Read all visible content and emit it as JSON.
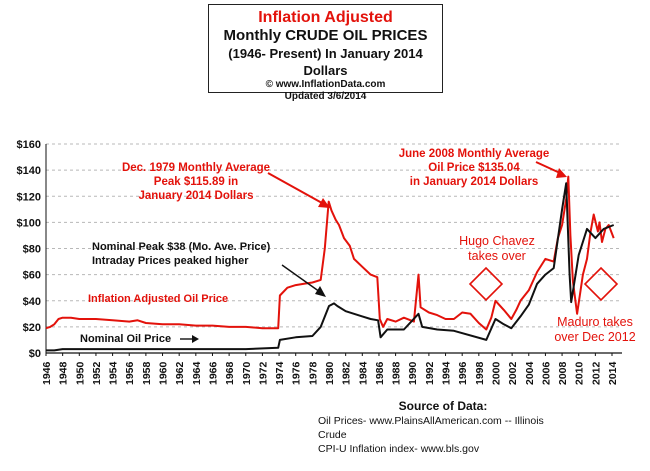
{
  "chart_data": {
    "type": "line",
    "title": "Inflation Adjusted",
    "subtitle": "Monthly CRUDE OIL PRICES",
    "subtitle2": "(1946- Present) In January 2014 Dollars",
    "website": "© www.InflationData.com",
    "updated": "Updated 3/6/2014",
    "xlim": [
      1946,
      2015.2
    ],
    "ylim": [
      0,
      160
    ],
    "grid": true,
    "y_ticks": [
      0,
      20,
      40,
      60,
      80,
      100,
      120,
      140,
      160
    ],
    "y_tick_labels": [
      "$0",
      "$20",
      "$40",
      "$60",
      "$80",
      "$100",
      "$120",
      "$140",
      "$160"
    ],
    "x_ticks": [
      1946,
      1948,
      1950,
      1952,
      1954,
      1956,
      1958,
      1960,
      1962,
      1964,
      1966,
      1968,
      1970,
      1972,
      1974,
      1976,
      1978,
      1980,
      1982,
      1984,
      1986,
      1988,
      1990,
      1992,
      1994,
      1996,
      1998,
      2000,
      2002,
      2004,
      2006,
      2008,
      2010,
      2012,
      2014
    ],
    "colors": {
      "inflation_adjusted": "#e3120b",
      "nominal": "#111111",
      "accent": "#e3120b"
    },
    "series": [
      {
        "name": "Inflation Adjusted Oil Price",
        "x": [
          1946,
          1946.5,
          1947,
          1947.5,
          1948,
          1949,
          1950,
          1952,
          1954,
          1956,
          1957,
          1958,
          1960,
          1962,
          1964,
          1966,
          1968,
          1970,
          1972,
          1973.5,
          1973.9,
          1974.1,
          1975,
          1976,
          1977,
          1978,
          1979,
          1979.5,
          1979.96,
          1980.3,
          1980.8,
          1981.2,
          1981.8,
          1982.5,
          1983,
          1984,
          1985,
          1985.8,
          1986.1,
          1986.5,
          1987,
          1988,
          1989,
          1990.2,
          1990.75,
          1991,
          1992,
          1993,
          1994,
          1995,
          1996,
          1997,
          1998,
          1998.9,
          1999.5,
          2000,
          2001,
          2001.9,
          2002.5,
          2003,
          2004,
          2005,
          2006,
          2007,
          2007.5,
          2008,
          2008.5,
          2008.75,
          2009.0,
          2009.3,
          2009.8,
          2010.5,
          2011,
          2011.4,
          2011.8,
          2012.3,
          2012.5,
          2012.8,
          2013.2,
          2013.6,
          2014.2
        ],
        "values": [
          19,
          20,
          22,
          26,
          27,
          27,
          26,
          26,
          25,
          24,
          25,
          23,
          22,
          22,
          21,
          21,
          20,
          20,
          19,
          19,
          19,
          44,
          50,
          52,
          53,
          54,
          56,
          80,
          115.89,
          109,
          102,
          98,
          88,
          82,
          72,
          66,
          60,
          58,
          26,
          20,
          26,
          24,
          27,
          24,
          60,
          35,
          31,
          29,
          26,
          26,
          31,
          30,
          23,
          18,
          27,
          40,
          33,
          26,
          33,
          40,
          48,
          62,
          72,
          70,
          88,
          98,
          118,
          135.04,
          90,
          55,
          30,
          60,
          72,
          92,
          106,
          93,
          100,
          85,
          95,
          98,
          88
        ]
      },
      {
        "name": "Nominal Oil Price",
        "x": [
          1946,
          1947,
          1948,
          1950,
          1955,
          1960,
          1965,
          1970,
          1973.9,
          1974.1,
          1976,
          1978,
          1979,
          1980,
          1980.6,
          1981,
          1982,
          1984,
          1985,
          1985.9,
          1986.2,
          1987,
          1989,
          1990.75,
          1991.2,
          1993,
          1995,
          1998.9,
          2000,
          2001,
          2001.9,
          2003,
          2004,
          2005,
          2006,
          2007,
          2008,
          2008.5,
          2008.9,
          2009.1,
          2010,
          2011,
          2012,
          2013,
          2014.2
        ],
        "values": [
          2,
          2,
          3,
          3,
          3,
          3,
          3,
          3,
          4,
          10,
          12,
          13,
          20,
          36,
          38,
          36,
          32,
          28,
          26,
          25,
          12,
          18,
          18,
          30,
          20,
          18,
          17,
          10,
          26,
          22,
          19,
          28,
          37,
          53,
          60,
          65,
          110,
          130,
          60,
          39,
          75,
          95,
          88,
          95,
          98
        ]
      }
    ],
    "annotations": [
      {
        "id": "peak1979",
        "lines": [
          "Dec. 1979 Monthly Average",
          "Peak $115.89 in",
          "January 2014 Dollars"
        ],
        "color": "#e3120b"
      },
      {
        "id": "peak2008",
        "lines": [
          "June 2008 Monthly Average",
          "Oil  Price $135.04",
          "in January 2014 Dollars"
        ],
        "color": "#e3120b"
      },
      {
        "id": "nominal-peak",
        "lines": [
          "Nominal Peak $38 (Mo. Ave. Price)",
          "Intraday Prices peaked higher"
        ],
        "color": "#111111"
      },
      {
        "id": "chavez",
        "lines": [
          "Hugo Chavez",
          "takes over"
        ],
        "color": "#e3120b"
      },
      {
        "id": "maduro",
        "lines": [
          "Maduro takes",
          "over Dec 2012"
        ],
        "color": "#e3120b"
      }
    ],
    "series_labels": {
      "inflation_adjusted": "Inflation Adjusted Oil Price",
      "nominal": "Nominal Oil Price"
    }
  },
  "source": {
    "heading": "Source of Data:",
    "line1": "Oil Prices- www.PlainsAllAmerican.com -- Illinois Crude",
    "line2": "CPI-U Inflation index-   www.bls.gov"
  }
}
